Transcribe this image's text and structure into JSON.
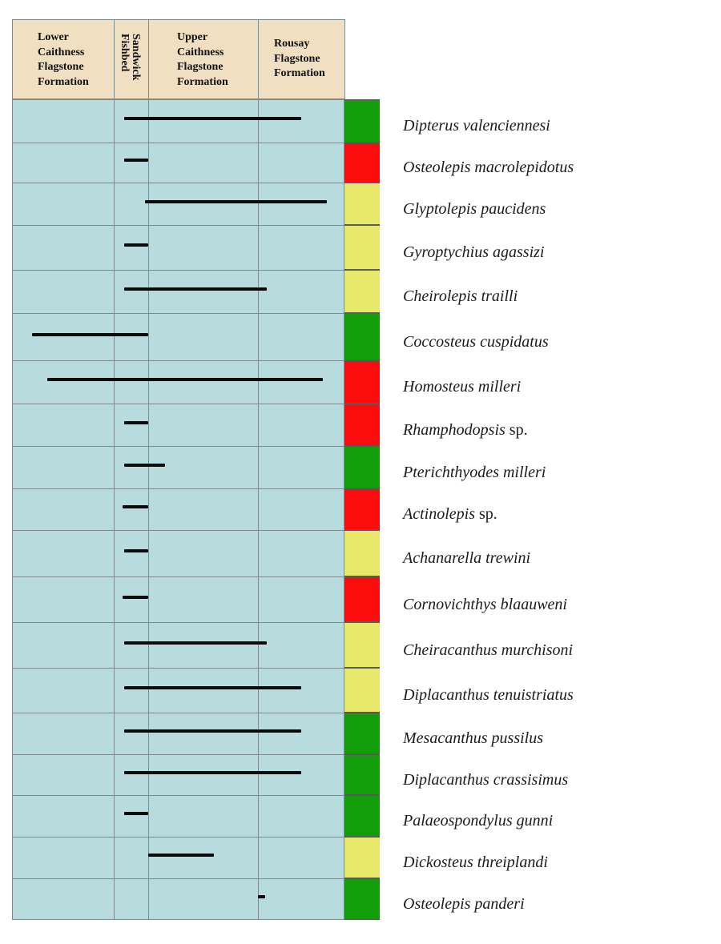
{
  "columns": [
    {
      "key": "lower",
      "label": "Lower\nCaithness\nFlagstone\nFormation"
    },
    {
      "key": "sandwick",
      "label": "Sandwick\nFishbed"
    },
    {
      "key": "upper",
      "label": "Upper\nCaithness\nFlagstone\nFormation"
    },
    {
      "key": "rousay",
      "label": "Rousay\nFlagstone\nFormation"
    }
  ],
  "colors": {
    "green": "#129e09",
    "red": "#fb0d0e",
    "yellow": "#e8e86b",
    "grid_fill": "#b8dcdd",
    "header_fill": "#f0dfc1"
  },
  "chart_data": {
    "type": "range-chart",
    "taxa": [
      {
        "name": "Dipterus valenciennesi",
        "suffix": "",
        "status": "green",
        "from": 1.3,
        "to": 3.5
      },
      {
        "name": "Osteolepis macrolepidotus",
        "suffix": "",
        "status": "red",
        "from": 1.3,
        "to": 2.0
      },
      {
        "name": "Glyptolepis paucidens",
        "suffix": "",
        "status": "yellow",
        "from": 1.9,
        "to": 3.8
      },
      {
        "name": "Gyroptychius agassizi",
        "suffix": "",
        "status": "yellow",
        "from": 1.3,
        "to": 2.0
      },
      {
        "name": "Cheirolepis trailli",
        "suffix": "",
        "status": "yellow",
        "from": 1.3,
        "to": 3.1
      },
      {
        "name": "Coccosteus cuspidatus",
        "suffix": "",
        "status": "green",
        "from": 0.2,
        "to": 2.0
      },
      {
        "name": "Homosteus milleri",
        "suffix": "",
        "status": "red",
        "from": 0.35,
        "to": 3.75
      },
      {
        "name": "Rhamphodopsis",
        "suffix": " sp.",
        "status": "red",
        "from": 1.3,
        "to": 2.0
      },
      {
        "name": "Pterichthyodes milleri",
        "suffix": "",
        "status": "green",
        "from": 1.3,
        "to": 2.15
      },
      {
        "name": "Actinolepis",
        "suffix": " sp.",
        "status": "red",
        "from": 1.25,
        "to": 2.0
      },
      {
        "name": "Achanarella trewini",
        "suffix": "",
        "status": "yellow",
        "from": 1.3,
        "to": 2.0
      },
      {
        "name": "Cornovichthys blaauweni",
        "suffix": "",
        "status": "red",
        "from": 1.25,
        "to": 2.0
      },
      {
        "name": "Cheiracanthus murchisoni",
        "suffix": "",
        "status": "yellow",
        "from": 1.3,
        "to": 3.1
      },
      {
        "name": "Diplacanthus tenuistriatus",
        "suffix": "",
        "status": "yellow",
        "from": 1.3,
        "to": 3.5
      },
      {
        "name": "Mesacanthus pussilus",
        "suffix": "",
        "status": "green",
        "from": 1.3,
        "to": 3.5
      },
      {
        "name": "Diplacanthus crassisimus",
        "suffix": "",
        "status": "green",
        "from": 1.3,
        "to": 3.5
      },
      {
        "name": "Palaeospondylus gunni",
        "suffix": "",
        "status": "green",
        "from": 1.3,
        "to": 2.0
      },
      {
        "name": "Dickosteus threiplandi",
        "suffix": "",
        "status": "yellow",
        "from": 2.0,
        "to": 2.6
      },
      {
        "name": "Osteolepis panderi",
        "suffix": "",
        "status": "green",
        "from": 3.0,
        "to": 3.08
      }
    ]
  }
}
